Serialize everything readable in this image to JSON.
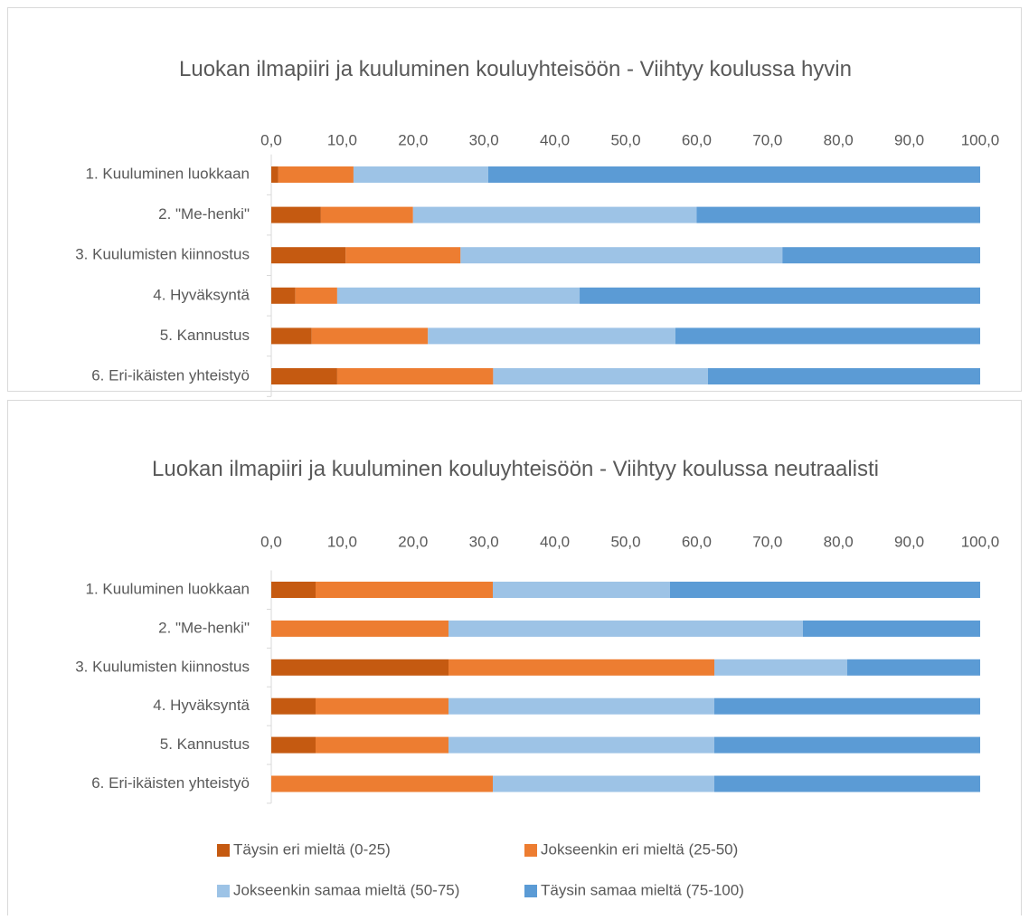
{
  "chart_data": [
    {
      "type": "stacked_barh",
      "title": "Luokan ilmapiiri ja kuuluminen kouluyhteisöön - Viihtyy koulussa hyvin",
      "categories": [
        "1. Kuuluminen luokkaan",
        "2. \"Me-henki\"",
        "3. Kuulumisten kiinnostus",
        "4. Hyväksyntä",
        "5. Kannustus",
        "6. Eri-ikäisten yhteistyö"
      ],
      "series": [
        {
          "color": "#c55a11",
          "values": [
            1.0,
            7.0,
            10.5,
            3.4,
            5.7,
            9.3
          ]
        },
        {
          "color": "#ed7d31",
          "values": [
            10.6,
            13.0,
            16.2,
            5.9,
            16.4,
            22.0
          ]
        },
        {
          "color": "#9dc3e6",
          "values": [
            19.0,
            40.0,
            45.4,
            34.2,
            34.9,
            30.3
          ]
        },
        {
          "color": "#5b9bd5",
          "values": [
            69.4,
            40.0,
            27.9,
            56.5,
            43.0,
            38.4
          ]
        }
      ],
      "xlim": [
        0,
        100
      ],
      "xticks": [
        {
          "value": 0,
          "label": "0,0"
        },
        {
          "value": 10,
          "label": "10,0"
        },
        {
          "value": 20,
          "label": "20,0"
        },
        {
          "value": 30,
          "label": "30,0"
        },
        {
          "value": 40,
          "label": "40,0"
        },
        {
          "value": 50,
          "label": "50,0"
        },
        {
          "value": 60,
          "label": "60,0"
        },
        {
          "value": 70,
          "label": "70,0"
        },
        {
          "value": 80,
          "label": "80,0"
        },
        {
          "value": 90,
          "label": "90,0"
        },
        {
          "value": 100,
          "label": "100,0"
        }
      ]
    },
    {
      "type": "stacked_barh",
      "title": "Luokan ilmapiiri ja kuuluminen kouluyhteisöön - Viihtyy koulussa neutraalisti",
      "categories": [
        "1. Kuuluminen luokkaan",
        "2. \"Me-henki\"",
        "3. Kuulumisten kiinnostus",
        "4. Hyväksyntä",
        "5. Kannustus",
        "6. Eri-ikäisten yhteistyö"
      ],
      "series": [
        {
          "name": "Täysin eri mieltä (0-25)",
          "color": "#c55a11",
          "values": [
            6.25,
            0,
            25,
            6.25,
            6.25,
            0
          ]
        },
        {
          "name": "Jokseenkin eri mieltä (25-50)",
          "color": "#ed7d31",
          "values": [
            25,
            25,
            37.5,
            18.75,
            18.75,
            31.25
          ]
        },
        {
          "name": "Jokseenkin samaa mieltä (50-75)",
          "color": "#9dc3e6",
          "values": [
            25,
            50,
            18.75,
            37.5,
            37.5,
            31.25
          ]
        },
        {
          "name": "Täysin samaa mieltä (75-100)",
          "color": "#5b9bd5",
          "values": [
            43.75,
            25,
            18.75,
            37.5,
            37.5,
            37.5
          ]
        }
      ],
      "xlim": [
        0,
        100
      ],
      "xticks": [
        {
          "value": 0,
          "label": "0,0"
        },
        {
          "value": 10,
          "label": "10,0"
        },
        {
          "value": 20,
          "label": "20,0"
        },
        {
          "value": 30,
          "label": "30,0"
        },
        {
          "value": 40,
          "label": "40,0"
        },
        {
          "value": 50,
          "label": "50,0"
        },
        {
          "value": 60,
          "label": "60,0"
        },
        {
          "value": 70,
          "label": "70,0"
        },
        {
          "value": 80,
          "label": "80,0"
        },
        {
          "value": 90,
          "label": "90,0"
        },
        {
          "value": 100,
          "label": "100,0"
        }
      ]
    }
  ]
}
